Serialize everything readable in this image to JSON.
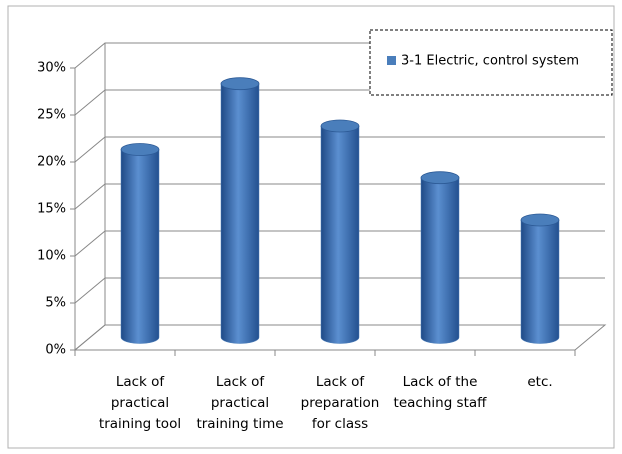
{
  "chart_data": {
    "type": "bar3d",
    "categories": [
      "Lack of practical training tool",
      "Lack of practical training time",
      "Lack of preparation for class",
      "Lack of the teaching staff",
      "etc."
    ],
    "series": [
      {
        "name": "3-1 Electric,  control system",
        "color": "#4a7ebb",
        "values": [
          20,
          27,
          22.5,
          17,
          12.5
        ]
      }
    ],
    "ylim": [
      0,
      30
    ],
    "yticks": [
      {
        "value": 0,
        "label": "0%"
      },
      {
        "value": 5,
        "label": "5%"
      },
      {
        "value": 10,
        "label": "10%"
      },
      {
        "value": 15,
        "label": "15%"
      },
      {
        "value": 20,
        "label": "20%"
      },
      {
        "value": 25,
        "label": "25%"
      },
      {
        "value": 30,
        "label": "30%"
      }
    ],
    "grid": true,
    "legend": "top-right"
  }
}
